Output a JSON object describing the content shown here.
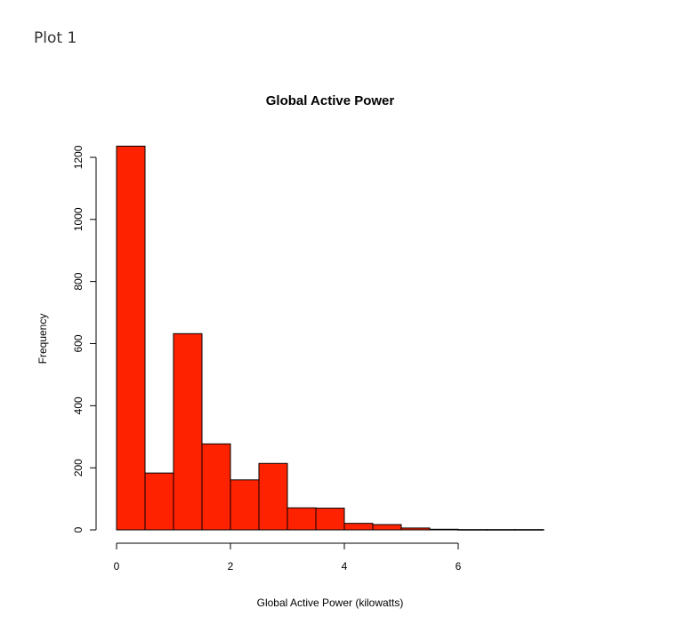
{
  "page": {
    "heading": "Plot 1"
  },
  "chart_data": {
    "type": "bar",
    "title": "Global Active Power",
    "xlabel": "Global Active Power (kilowatts)",
    "ylabel": "Frequency",
    "xlim": [
      0,
      7.5
    ],
    "ylim": [
      0,
      1200
    ],
    "x_ticks": [
      0,
      2,
      4,
      6
    ],
    "y_ticks": [
      0,
      200,
      400,
      600,
      800,
      1000,
      1200
    ],
    "bin_width": 0.5,
    "bins": [
      {
        "start": 0.0,
        "end": 0.5,
        "count": 1236
      },
      {
        "start": 0.5,
        "end": 1.0,
        "count": 183
      },
      {
        "start": 1.0,
        "end": 1.5,
        "count": 632
      },
      {
        "start": 1.5,
        "end": 2.0,
        "count": 277
      },
      {
        "start": 2.0,
        "end": 2.5,
        "count": 161
      },
      {
        "start": 2.5,
        "end": 3.0,
        "count": 214
      },
      {
        "start": 3.0,
        "end": 3.5,
        "count": 71
      },
      {
        "start": 3.5,
        "end": 4.0,
        "count": 70
      },
      {
        "start": 4.0,
        "end": 4.5,
        "count": 21
      },
      {
        "start": 4.5,
        "end": 5.0,
        "count": 17
      },
      {
        "start": 5.0,
        "end": 5.5,
        "count": 6
      },
      {
        "start": 5.5,
        "end": 6.0,
        "count": 2
      },
      {
        "start": 6.0,
        "end": 6.5,
        "count": 1
      },
      {
        "start": 6.5,
        "end": 7.0,
        "count": 1
      },
      {
        "start": 7.0,
        "end": 7.5,
        "count": 1
      }
    ],
    "bar_color": "#ff2200",
    "bar_border": "#000000",
    "grid": false,
    "legend": "none"
  }
}
